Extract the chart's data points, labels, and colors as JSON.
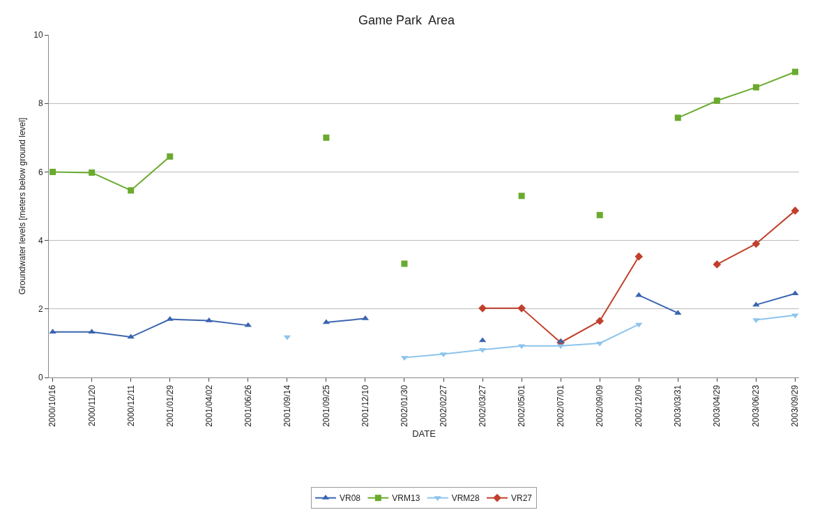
{
  "chart_data": {
    "type": "line",
    "title": "Game Park  Area",
    "xlabel": "DATE",
    "ylabel": "Groundwater levels [meters below ground level]",
    "categories": [
      "2000/10/16",
      "2000/11/20",
      "2000/12/11",
      "2001/01/29",
      "2001/04/02",
      "2001/06/26",
      "2001/09/14",
      "2001/09/25",
      "2001/12/10",
      "2002/01/30",
      "2002/02/27",
      "2002/03/27",
      "2002/05/01",
      "2002/07/01",
      "2002/09/09",
      "2002/12/09",
      "2003/03/31",
      "2003/04/29",
      "2003/06/23",
      "2003/09/29"
    ],
    "series": [
      {
        "name": "VR08",
        "color": "#3a64b0",
        "marker": "triangle",
        "values": [
          1.33,
          1.33,
          1.18,
          1.7,
          1.66,
          1.52,
          null,
          1.61,
          1.72,
          null,
          null,
          1.08,
          null,
          1.05,
          null,
          2.4,
          1.88,
          null,
          2.12,
          2.45
        ]
      },
      {
        "name": "VRM13",
        "color": "#6aaa2e",
        "marker": "square",
        "values": [
          6.0,
          5.98,
          5.46,
          6.45,
          null,
          null,
          null,
          7.0,
          null,
          3.32,
          null,
          null,
          5.3,
          null,
          4.74,
          null,
          7.58,
          8.08,
          8.47,
          8.92
        ]
      },
      {
        "name": "VRM28",
        "color": "#8cc4ec",
        "marker": "triangle-down",
        "values": [
          null,
          null,
          null,
          null,
          null,
          null,
          1.18,
          null,
          null,
          0.58,
          0.68,
          0.81,
          0.92,
          0.92,
          1.0,
          1.55,
          null,
          null,
          1.68,
          1.82
        ]
      },
      {
        "name": "VR27",
        "color": "#c0402c",
        "marker": "diamond",
        "values": [
          null,
          null,
          null,
          null,
          null,
          null,
          null,
          null,
          null,
          null,
          null,
          2.02,
          2.02,
          1.02,
          1.65,
          3.53,
          null,
          3.3,
          3.9,
          4.87
        ]
      }
    ],
    "ylim": [
      0,
      10
    ],
    "yticks": [
      0,
      2,
      4,
      6,
      8,
      10
    ],
    "grid": "y",
    "legend": "bottom",
    "line_style": "solid"
  }
}
